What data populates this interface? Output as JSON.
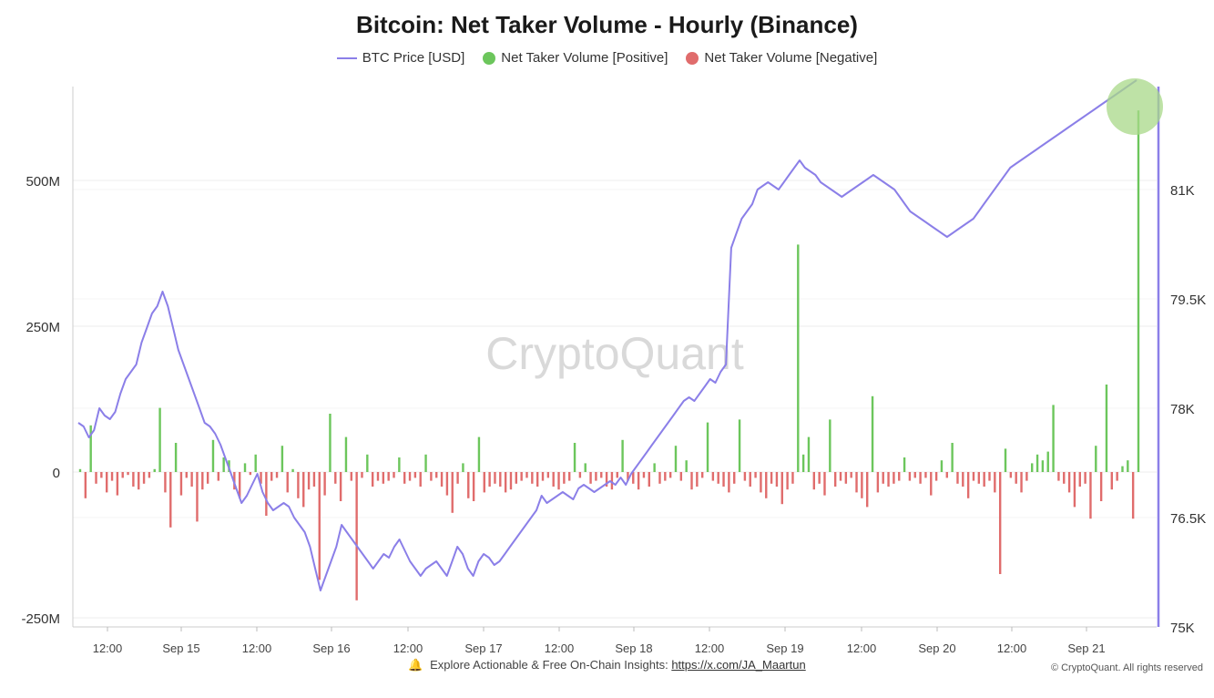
{
  "colors": {
    "price_line": "#8b7fe8",
    "positive": "#6cc65c",
    "negative": "#e06c6c",
    "highlight": "#a8d888"
  },
  "icons": {
    "footer": "bell-icon"
  },
  "footer": {
    "text": "Explore Actionable & Free On-Chain Insights:",
    "link": "https://x.com/JA_Maartun",
    "copyright": "© CryptoQuant. All rights reserved"
  },
  "chart_data": {
    "type": "bar",
    "title": "Bitcoin: Net Taker Volume - Hourly (Binance)",
    "watermark": "CryptoQuant",
    "legend": [
      {
        "name": "BTC Price [USD]",
        "kind": "line",
        "color": "#8b7fe8"
      },
      {
        "name": "Net Taker Volume [Positive]",
        "kind": "dot",
        "color": "#6cc65c"
      },
      {
        "name": "Net Taker Volume [Negative]",
        "kind": "dot",
        "color": "#e06c6c"
      }
    ],
    "x_ticks": [
      "12:00",
      "Sep 15",
      "12:00",
      "Sep 16",
      "12:00",
      "Sep 17",
      "12:00",
      "Sep 18",
      "12:00",
      "Sep 19",
      "12:00",
      "Sep 20",
      "12:00",
      "Sep 21"
    ],
    "y_left": {
      "range": [
        -250000000,
        650000000
      ],
      "ticks": [
        -250000000,
        0,
        250000000,
        500000000
      ],
      "tick_labels": [
        "-250M",
        "0",
        "250M",
        "500M"
      ]
    },
    "y_right": {
      "range": [
        75000,
        82500
      ],
      "ticks": [
        75000,
        76500,
        78000,
        79500,
        81000
      ],
      "tick_labels": [
        "75K",
        "76.5K",
        "78K",
        "79.5K",
        "81K"
      ]
    },
    "grid": true,
    "legend_position": "top",
    "series": [
      {
        "name": "BTC Price [USD]",
        "axis": "right",
        "values": [
          77800,
          77750,
          77600,
          77700,
          78000,
          77900,
          77850,
          77950,
          78200,
          78400,
          78500,
          78600,
          78900,
          79100,
          79300,
          79400,
          79600,
          79400,
          79100,
          78800,
          78600,
          78400,
          78200,
          78000,
          77800,
          77750,
          77650,
          77500,
          77300,
          77100,
          76900,
          76700,
          76800,
          76950,
          77100,
          76850,
          76700,
          76600,
          76650,
          76700,
          76650,
          76500,
          76400,
          76300,
          76100,
          75800,
          75500,
          75700,
          75900,
          76100,
          76400,
          76300,
          76200,
          76100,
          76000,
          75900,
          75800,
          75900,
          76000,
          75950,
          76100,
          76200,
          76050,
          75900,
          75800,
          75700,
          75800,
          75850,
          75900,
          75800,
          75700,
          75900,
          76100,
          76000,
          75800,
          75700,
          75900,
          76000,
          75950,
          75850,
          75900,
          76000,
          76100,
          76200,
          76300,
          76400,
          76500,
          76600,
          76800,
          76700,
          76750,
          76800,
          76850,
          76800,
          76750,
          76900,
          76950,
          76900,
          76850,
          76900,
          76950,
          77000,
          76950,
          77050,
          76950,
          77100,
          77200,
          77300,
          77400,
          77500,
          77600,
          77700,
          77800,
          77900,
          78000,
          78100,
          78150,
          78100,
          78200,
          78300,
          78400,
          78350,
          78500,
          78600,
          80200,
          80400,
          80600,
          80700,
          80800,
          81000,
          81050,
          81100,
          81050,
          81000,
          81100,
          81200,
          81300,
          81400,
          81300,
          81250,
          81200,
          81100,
          81050,
          81000,
          80950,
          80900,
          80950,
          81000,
          81050,
          81100,
          81150,
          81200,
          81150,
          81100,
          81050,
          81000,
          80900,
          80800,
          80700,
          80650,
          80600,
          80550,
          80500,
          80450,
          80400,
          80350,
          80400,
          80450,
          80500,
          80550,
          80600,
          80700,
          80800,
          80900,
          81000,
          81100,
          81200,
          81300,
          81350,
          81400,
          81450,
          81500,
          81550,
          81600,
          81650,
          81700,
          81750,
          81800,
          81850,
          81900,
          81950,
          82000,
          82050,
          82100,
          82150,
          82200,
          82250,
          82300,
          82350,
          82400,
          82450,
          82500
        ]
      },
      {
        "name": "Net Taker Volume",
        "axis": "left",
        "values": [
          5000000,
          -45000000,
          80000000,
          -20000000,
          -10000000,
          -35000000,
          -15000000,
          -40000000,
          -10000000,
          -5000000,
          -25000000,
          -30000000,
          -20000000,
          -10000000,
          5000000,
          110000000,
          -35000000,
          -95000000,
          50000000,
          -40000000,
          -10000000,
          -25000000,
          -85000000,
          -30000000,
          -20000000,
          55000000,
          -15000000,
          25000000,
          20000000,
          -30000000,
          -45000000,
          15000000,
          -5000000,
          30000000,
          -20000000,
          -75000000,
          -15000000,
          -10000000,
          45000000,
          -35000000,
          5000000,
          -45000000,
          -60000000,
          -30000000,
          -25000000,
          -185000000,
          -40000000,
          100000000,
          -20000000,
          -50000000,
          60000000,
          -15000000,
          -220000000,
          -10000000,
          30000000,
          -25000000,
          -15000000,
          -20000000,
          -15000000,
          -10000000,
          25000000,
          -20000000,
          -15000000,
          -10000000,
          -25000000,
          30000000,
          -15000000,
          -10000000,
          -25000000,
          -40000000,
          -70000000,
          -20000000,
          15000000,
          -45000000,
          -50000000,
          60000000,
          -35000000,
          -25000000,
          -20000000,
          -25000000,
          -35000000,
          -30000000,
          -20000000,
          -15000000,
          -10000000,
          -20000000,
          -25000000,
          -15000000,
          -10000000,
          -25000000,
          -30000000,
          -20000000,
          -15000000,
          50000000,
          -10000000,
          15000000,
          -20000000,
          -15000000,
          -10000000,
          -25000000,
          -30000000,
          -10000000,
          55000000,
          -15000000,
          -20000000,
          -30000000,
          -10000000,
          -25000000,
          15000000,
          -20000000,
          -15000000,
          -10000000,
          45000000,
          -15000000,
          20000000,
          -30000000,
          -25000000,
          -10000000,
          85000000,
          -15000000,
          -20000000,
          -25000000,
          -35000000,
          -20000000,
          90000000,
          -15000000,
          -25000000,
          -10000000,
          -35000000,
          -45000000,
          -20000000,
          -25000000,
          -55000000,
          -30000000,
          -20000000,
          390000000,
          30000000,
          60000000,
          -30000000,
          -20000000,
          -40000000,
          90000000,
          -25000000,
          -15000000,
          -20000000,
          -10000000,
          -35000000,
          -45000000,
          -60000000,
          130000000,
          -35000000,
          -20000000,
          -25000000,
          -20000000,
          -15000000,
          25000000,
          -15000000,
          -10000000,
          -20000000,
          -10000000,
          -40000000,
          -15000000,
          20000000,
          -10000000,
          50000000,
          -20000000,
          -25000000,
          -45000000,
          -15000000,
          -20000000,
          -25000000,
          -15000000,
          -35000000,
          -175000000,
          40000000,
          -10000000,
          -20000000,
          -35000000,
          -15000000,
          15000000,
          30000000,
          20000000,
          35000000,
          115000000,
          -15000000,
          -20000000,
          -35000000,
          -60000000,
          -25000000,
          -20000000,
          -80000000,
          45000000,
          -50000000,
          150000000,
          -30000000,
          -15000000,
          10000000,
          20000000,
          -80000000,
          620000000
        ]
      }
    ]
  }
}
